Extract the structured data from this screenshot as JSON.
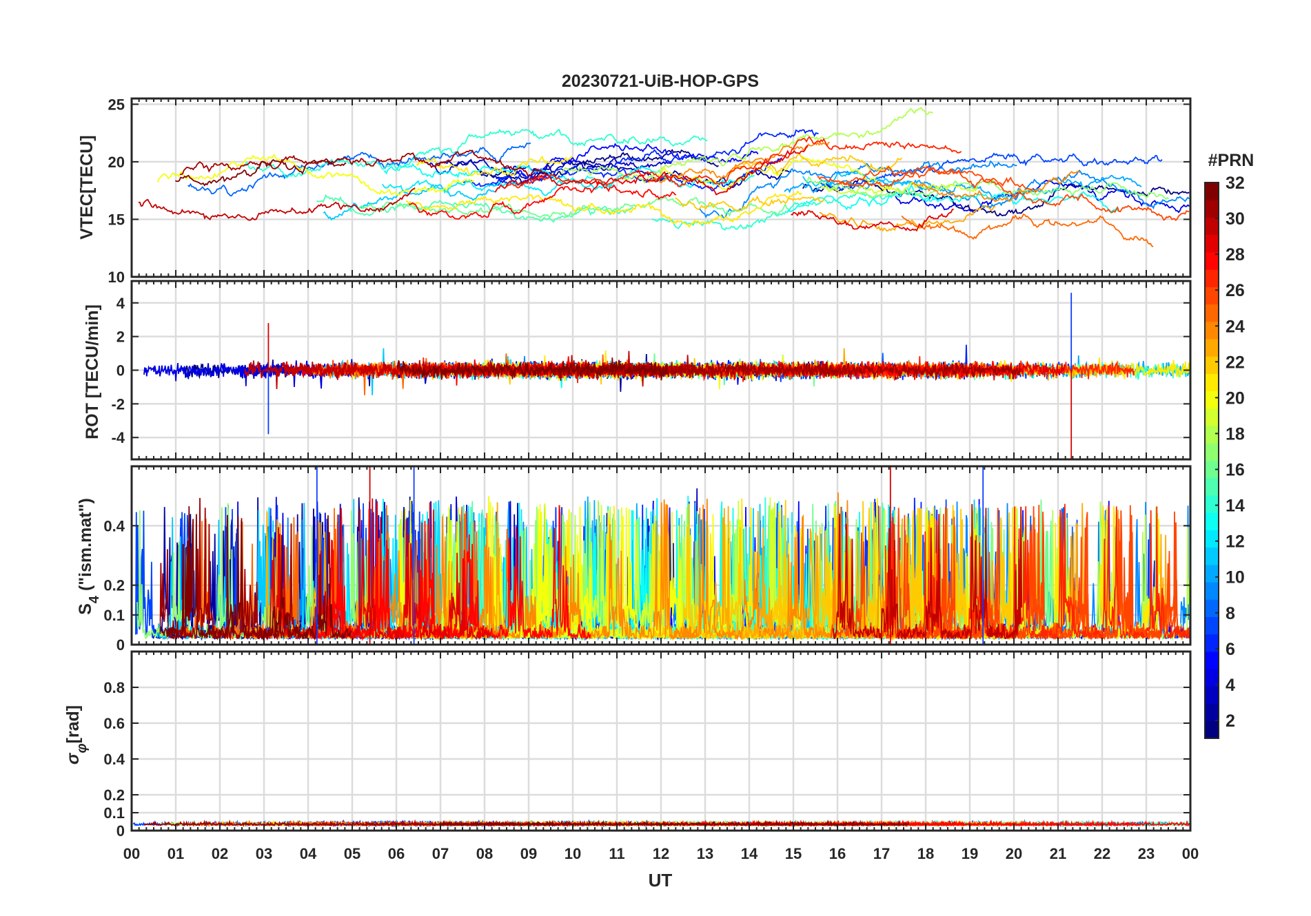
{
  "figure": {
    "title": "20230721-UiB-HOP-GPS",
    "xlabel": "UT",
    "x_ticklabels": [
      "00",
      "01",
      "02",
      "03",
      "04",
      "05",
      "06",
      "07",
      "08",
      "09",
      "10",
      "11",
      "12",
      "13",
      "14",
      "15",
      "16",
      "17",
      "18",
      "19",
      "20",
      "21",
      "22",
      "23",
      "00"
    ]
  },
  "colorbar": {
    "title": "#PRN",
    "ticks": [
      2,
      4,
      6,
      8,
      10,
      12,
      14,
      16,
      18,
      20,
      22,
      24,
      26,
      28,
      30,
      32
    ],
    "range": [
      1,
      32
    ],
    "colormap": "jet",
    "levels": 32
  },
  "chart_data": [
    {
      "type": "line",
      "panel": "vtec",
      "ylabel": "VTEC[TECU]",
      "xlim": [
        0,
        24
      ],
      "ylim": [
        10,
        25.5
      ],
      "yticks": [
        10,
        15,
        20,
        25
      ],
      "grid": true,
      "series_count": 32,
      "series_color_by": "PRN",
      "typical_range": [
        12,
        25
      ],
      "description": ""
    },
    {
      "type": "line",
      "panel": "rot",
      "ylabel": "ROT [TECU/min]",
      "xlim": [
        0,
        24
      ],
      "ylim": [
        -5.3,
        5.3
      ],
      "yticks": [
        -4,
        -2,
        0,
        2,
        4
      ],
      "grid": true,
      "series_count": 32,
      "series_color_by": "PRN",
      "notable_spikes": [
        {
          "x": 3.1,
          "y": -3.8
        },
        {
          "x": 3.1,
          "y": 2.8
        },
        {
          "x": 21.3,
          "y": 4.6
        },
        {
          "x": 21.3,
          "y": -5.3
        }
      ]
    },
    {
      "type": "line",
      "panel": "s4",
      "ylabel": "S4 (\"ism.mat\")",
      "ylabel_main": "S",
      "ylabel_sub": "4",
      "ylabel_rest": " (\"ism.mat\")",
      "xlim": [
        0,
        24
      ],
      "ylim": [
        0,
        0.6
      ],
      "yticks": [
        0,
        0.1,
        0.2,
        0.4
      ],
      "grid": true,
      "series_count": 32,
      "series_color_by": "PRN",
      "peak_values": [
        {
          "x": 4.2,
          "y": 0.6
        },
        {
          "x": 5.4,
          "y": 0.6
        },
        {
          "x": 6.4,
          "y": 0.6
        },
        {
          "x": 17.2,
          "y": 0.6
        },
        {
          "x": 19.3,
          "y": 0.6
        }
      ]
    },
    {
      "type": "line",
      "panel": "sigma_phi",
      "ylabel": "σφ[rad]",
      "ylabel_main": "σ",
      "ylabel_sub": "φ",
      "ylabel_rest": "[rad]",
      "xlim": [
        0,
        24
      ],
      "ylim": [
        0,
        1
      ],
      "yticks": [
        0,
        0.1,
        0.2,
        0.4,
        0.6,
        0.8
      ],
      "grid": true,
      "series_count": 32,
      "series_color_by": "PRN",
      "typical_range": [
        0.02,
        0.08
      ]
    }
  ]
}
